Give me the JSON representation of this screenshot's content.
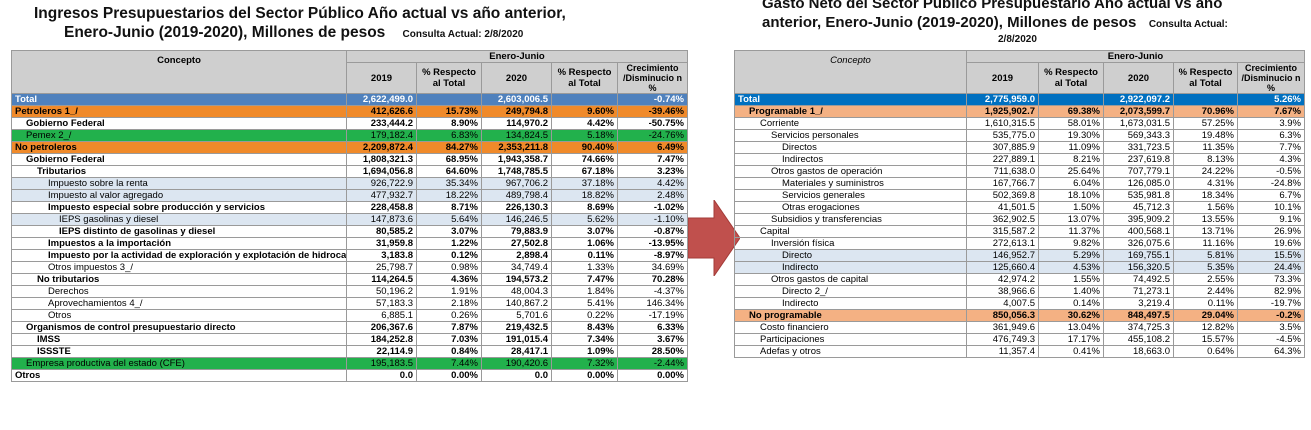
{
  "left": {
    "title_line1": "Ingresos Presupuestarios del Sector Público Año actual vs año anterior,",
    "title_line2": "Enero-Junio (2019-2020), Millones de pesos",
    "consulta": "Consulta Actual: 2/8/2020",
    "header": {
      "concepto": "Concepto",
      "period": "Enero-Junio",
      "y2019": "2019",
      "pct2019": "% Respecto al Total",
      "y2020": "2020",
      "pct2020": "% Respecto al Total",
      "crec": "Crecimiento /Disminucio n %"
    },
    "rows": [
      {
        "label": "Total",
        "v2019": "2,622,499.0",
        "p2019": "",
        "v2020": "2,603,006.5",
        "p2020": "",
        "c": "-0.74%",
        "style": "total",
        "indent": 0
      },
      {
        "label": "Petroleros 1_/",
        "v2019": "412,626.6",
        "p2019": "15.73%",
        "v2020": "249,794.8",
        "p2020": "9.60%",
        "c": "-39.46%",
        "style": "orange",
        "indent": 0
      },
      {
        "label": "Gobierno Federal",
        "v2019": "233,444.2",
        "p2019": "8.90%",
        "v2020": "114,970.2",
        "p2020": "4.42%",
        "c": "-50.75%",
        "style": "bold",
        "indent": 1
      },
      {
        "label": "Pemex 2_/",
        "v2019": "179,182.4",
        "p2019": "6.83%",
        "v2020": "134,824.5",
        "p2020": "5.18%",
        "c": "-24.76%",
        "style": "green",
        "indent": 1
      },
      {
        "label": "No petroleros",
        "v2019": "2,209,872.4",
        "p2019": "84.27%",
        "v2020": "2,353,211.8",
        "p2020": "90.40%",
        "c": "6.49%",
        "style": "orange",
        "indent": 0
      },
      {
        "label": "Gobierno Federal",
        "v2019": "1,808,321.3",
        "p2019": "68.95%",
        "v2020": "1,943,358.7",
        "p2020": "74.66%",
        "c": "7.47%",
        "style": "bold",
        "indent": 1
      },
      {
        "label": "Tributarios",
        "v2019": "1,694,056.8",
        "p2019": "64.60%",
        "v2020": "1,748,785.5",
        "p2020": "67.18%",
        "c": "3.23%",
        "style": "bold",
        "indent": 2
      },
      {
        "label": "Impuesto sobre la renta",
        "v2019": "926,722.9",
        "p2019": "35.34%",
        "v2020": "967,706.2",
        "p2020": "37.18%",
        "c": "4.42%",
        "style": "lightblue",
        "indent": 3
      },
      {
        "label": "Impuesto al valor agregado",
        "v2019": "477,932.7",
        "p2019": "18.22%",
        "v2020": "489,798.4",
        "p2020": "18.82%",
        "c": "2.48%",
        "style": "lightblue",
        "indent": 3
      },
      {
        "label": "Impuesto especial sobre producción y servicios",
        "v2019": "228,458.8",
        "p2019": "8.71%",
        "v2020": "226,130.3",
        "p2020": "8.69%",
        "c": "-1.02%",
        "style": "bold",
        "indent": 3
      },
      {
        "label": "IEPS gasolinas y diesel",
        "v2019": "147,873.6",
        "p2019": "5.64%",
        "v2020": "146,246.5",
        "p2020": "5.62%",
        "c": "-1.10%",
        "style": "lightblue",
        "indent": 4
      },
      {
        "label": "IEPS distinto de gasolinas y diesel",
        "v2019": "80,585.2",
        "p2019": "3.07%",
        "v2020": "79,883.9",
        "p2020": "3.07%",
        "c": "-0.87%",
        "style": "bold",
        "indent": 4
      },
      {
        "label": "Impuestos a la importación",
        "v2019": "31,959.8",
        "p2019": "1.22%",
        "v2020": "27,502.8",
        "p2020": "1.06%",
        "c": "-13.95%",
        "style": "bold",
        "indent": 3
      },
      {
        "label": "Impuesto por la actividad de exploración y explotación de hidrocar",
        "v2019": "3,183.8",
        "p2019": "0.12%",
        "v2020": "2,898.4",
        "p2020": "0.11%",
        "c": "-8.97%",
        "style": "bold",
        "indent": 3
      },
      {
        "label": "Otros impuestos 3_/",
        "v2019": "25,798.7",
        "p2019": "0.98%",
        "v2020": "34,749.4",
        "p2020": "1.33%",
        "c": "34.69%",
        "style": "",
        "indent": 3
      },
      {
        "label": "No tributarios",
        "v2019": "114,264.5",
        "p2019": "4.36%",
        "v2020": "194,573.2",
        "p2020": "7.47%",
        "c": "70.28%",
        "style": "bold",
        "indent": 2
      },
      {
        "label": "Derechos",
        "v2019": "50,196.2",
        "p2019": "1.91%",
        "v2020": "48,004.3",
        "p2020": "1.84%",
        "c": "-4.37%",
        "style": "",
        "indent": 3
      },
      {
        "label": "Aprovechamientos 4_/",
        "v2019": "57,183.3",
        "p2019": "2.18%",
        "v2020": "140,867.2",
        "p2020": "5.41%",
        "c": "146.34%",
        "style": "",
        "indent": 3
      },
      {
        "label": "Otros",
        "v2019": "6,885.1",
        "p2019": "0.26%",
        "v2020": "5,701.6",
        "p2020": "0.22%",
        "c": "-17.19%",
        "style": "",
        "indent": 3
      },
      {
        "label": "Organismos de control presupuestario directo",
        "v2019": "206,367.6",
        "p2019": "7.87%",
        "v2020": "219,432.5",
        "p2020": "8.43%",
        "c": "6.33%",
        "style": "bold",
        "indent": 1
      },
      {
        "label": "IMSS",
        "v2019": "184,252.8",
        "p2019": "7.03%",
        "v2020": "191,015.4",
        "p2020": "7.34%",
        "c": "3.67%",
        "style": "bold",
        "indent": 2
      },
      {
        "label": "ISSSTE",
        "v2019": "22,114.9",
        "p2019": "0.84%",
        "v2020": "28,417.1",
        "p2020": "1.09%",
        "c": "28.50%",
        "style": "bold",
        "indent": 2
      },
      {
        "label": "Empresa productiva del estado (CFE)",
        "v2019": "195,183.5",
        "p2019": "7.44%",
        "v2020": "190,420.6",
        "p2020": "7.32%",
        "c": "-2.44%",
        "style": "green",
        "indent": 1
      },
      {
        "label": "Otros",
        "v2019": "0.0",
        "p2019": "0.00%",
        "v2020": "0.0",
        "p2020": "0.00%",
        "c": "0.00%",
        "style": "bold",
        "indent": 0
      }
    ]
  },
  "right": {
    "title_line1": "Gasto Neto del Sector Público Presupuestario Año actual vs año",
    "title_line2": "anterior, Enero-Junio (2019-2020), Millones de pesos",
    "consulta": "Consulta Actual:",
    "consulta_date": "2/8/2020",
    "header": {
      "concepto": "Concepto",
      "period": "Enero-Junio",
      "y2019": "2019",
      "pct2019": "% Respecto al Total",
      "y2020": "2020",
      "pct2020": "% Respecto al Total",
      "crec": "Crecimiento /Disminucio n %"
    },
    "rows": [
      {
        "label": "Total",
        "v2019": "2,775,959.0",
        "p2019": "",
        "v2020": "2,922,097.2",
        "p2020": "",
        "c": "5.26%",
        "style": "total2",
        "indent": 0
      },
      {
        "label": "Programable 1_/",
        "v2019": "1,925,902.7",
        "p2019": "69.38%",
        "v2020": "2,073,599.7",
        "p2020": "70.96%",
        "c": "7.67%",
        "style": "orange2",
        "indent": 1
      },
      {
        "label": "Corriente",
        "v2019": "1,610,315.5",
        "p2019": "58.01%",
        "v2020": "1,673,031.5",
        "p2020": "57.25%",
        "c": "3.9%",
        "style": "",
        "indent": 2
      },
      {
        "label": "Servicios personales",
        "v2019": "535,775.0",
        "p2019": "19.30%",
        "v2020": "569,343.3",
        "p2020": "19.48%",
        "c": "6.3%",
        "style": "",
        "indent": 3
      },
      {
        "label": "Directos",
        "v2019": "307,885.9",
        "p2019": "11.09%",
        "v2020": "331,723.5",
        "p2020": "11.35%",
        "c": "7.7%",
        "style": "",
        "indent": 4
      },
      {
        "label": "Indirectos",
        "v2019": "227,889.1",
        "p2019": "8.21%",
        "v2020": "237,619.8",
        "p2020": "8.13%",
        "c": "4.3%",
        "style": "",
        "indent": 4
      },
      {
        "label": "Otros gastos de operación",
        "v2019": "711,638.0",
        "p2019": "25.64%",
        "v2020": "707,779.1",
        "p2020": "24.22%",
        "c": "-0.5%",
        "style": "",
        "indent": 3
      },
      {
        "label": "Materiales y suministros",
        "v2019": "167,766.7",
        "p2019": "6.04%",
        "v2020": "126,085.0",
        "p2020": "4.31%",
        "c": "-24.8%",
        "style": "",
        "indent": 4
      },
      {
        "label": "Servicios generales",
        "v2019": "502,369.8",
        "p2019": "18.10%",
        "v2020": "535,981.8",
        "p2020": "18.34%",
        "c": "6.7%",
        "style": "",
        "indent": 4
      },
      {
        "label": "Otras erogaciones",
        "v2019": "41,501.5",
        "p2019": "1.50%",
        "v2020": "45,712.3",
        "p2020": "1.56%",
        "c": "10.1%",
        "style": "",
        "indent": 4
      },
      {
        "label": "Subsidios y transferencias",
        "v2019": "362,902.5",
        "p2019": "13.07%",
        "v2020": "395,909.2",
        "p2020": "13.55%",
        "c": "9.1%",
        "style": "",
        "indent": 3
      },
      {
        "label": "Capital",
        "v2019": "315,587.2",
        "p2019": "11.37%",
        "v2020": "400,568.1",
        "p2020": "13.71%",
        "c": "26.9%",
        "style": "",
        "indent": 2
      },
      {
        "label": "Inversión física",
        "v2019": "272,613.1",
        "p2019": "9.82%",
        "v2020": "326,075.6",
        "p2020": "11.16%",
        "c": "19.6%",
        "style": "",
        "indent": 3
      },
      {
        "label": "Directo",
        "v2019": "146,952.7",
        "p2019": "5.29%",
        "v2020": "169,755.1",
        "p2020": "5.81%",
        "c": "15.5%",
        "style": "lightblue",
        "indent": 4
      },
      {
        "label": "Indirecto",
        "v2019": "125,660.4",
        "p2019": "4.53%",
        "v2020": "156,320.5",
        "p2020": "5.35%",
        "c": "24.4%",
        "style": "lightblue",
        "indent": 4
      },
      {
        "label": "Otros gastos de capital",
        "v2019": "42,974.2",
        "p2019": "1.55%",
        "v2020": "74,492.5",
        "p2020": "2.55%",
        "c": "73.3%",
        "style": "",
        "indent": 3
      },
      {
        "label": "Directo 2_/",
        "v2019": "38,966.6",
        "p2019": "1.40%",
        "v2020": "71,273.1",
        "p2020": "2.44%",
        "c": "82.9%",
        "style": "",
        "indent": 4
      },
      {
        "label": "Indirecto",
        "v2019": "4,007.5",
        "p2019": "0.14%",
        "v2020": "3,219.4",
        "p2020": "0.11%",
        "c": "-19.7%",
        "style": "",
        "indent": 4
      },
      {
        "label": "No programable",
        "v2019": "850,056.3",
        "p2019": "30.62%",
        "v2020": "848,497.5",
        "p2020": "29.04%",
        "c": "-0.2%",
        "style": "orange2",
        "indent": 1
      },
      {
        "label": "Costo financiero",
        "v2019": "361,949.6",
        "p2019": "13.04%",
        "v2020": "374,725.3",
        "p2020": "12.82%",
        "c": "3.5%",
        "style": "",
        "indent": 2
      },
      {
        "label": "Participaciones",
        "v2019": "476,749.3",
        "p2019": "17.17%",
        "v2020": "455,108.2",
        "p2020": "15.57%",
        "c": "-4.5%",
        "style": "",
        "indent": 2
      },
      {
        "label": "Adefas y otros",
        "v2019": "11,357.4",
        "p2019": "0.41%",
        "v2020": "18,663.0",
        "p2020": "0.64%",
        "c": "64.3%",
        "style": "",
        "indent": 2
      }
    ]
  },
  "colors": {
    "arrow": "#c0504d",
    "total_left": "#4f81bd",
    "total_right": "#0070c0",
    "orange": "#f08a2a",
    "orange_light": "#f4b183",
    "green": "#22b14c",
    "lightblue": "#dce6f1"
  }
}
